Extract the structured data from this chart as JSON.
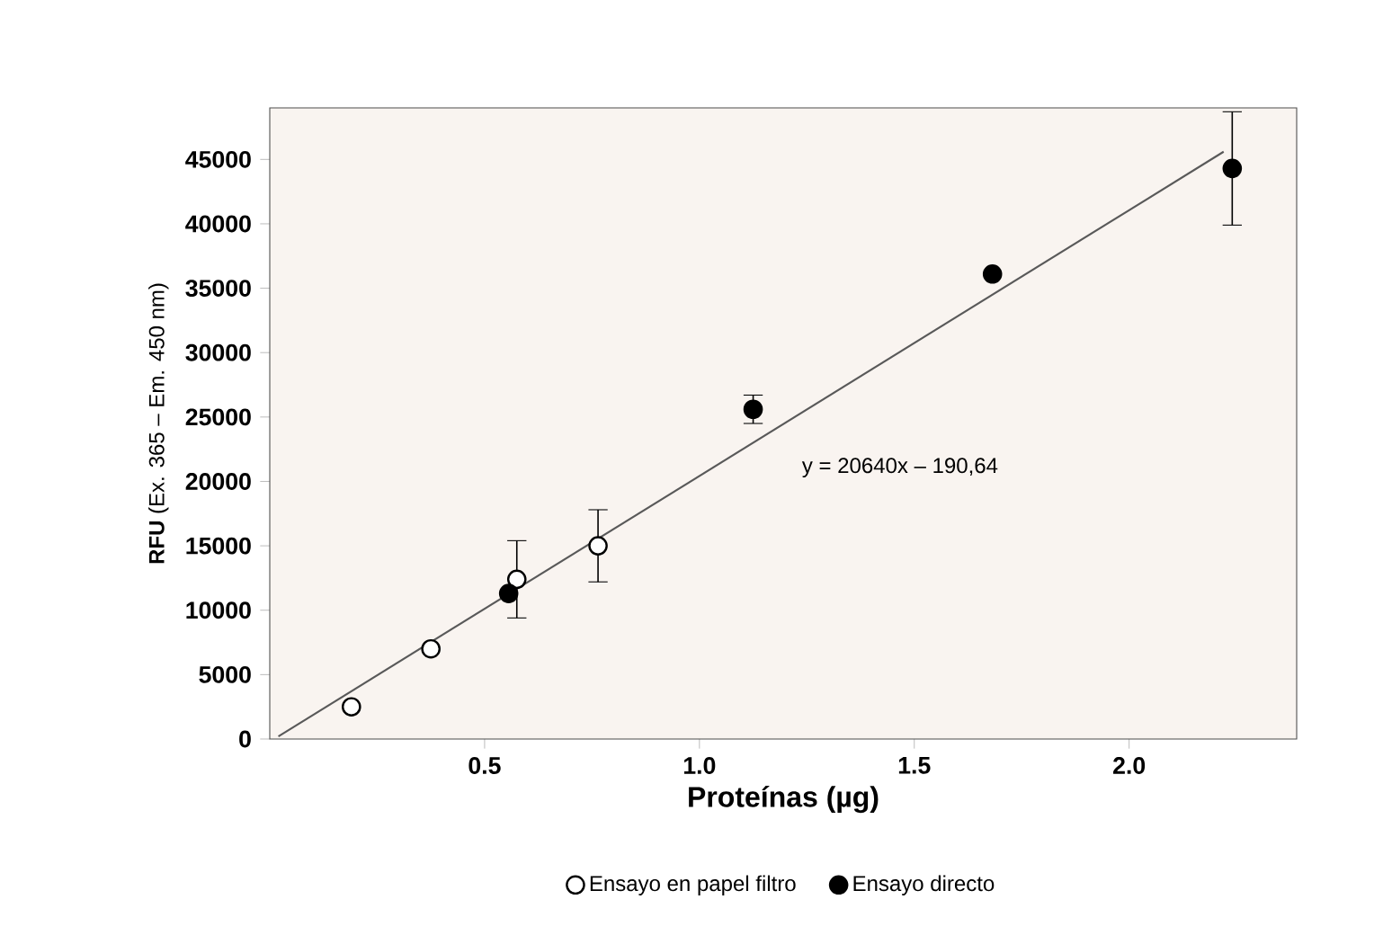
{
  "chart_data": {
    "type": "scatter",
    "xlabel": "Proteínas (µg)",
    "ylabel": "**RFU** (Ex. 365 – Em. 450 nm)",
    "xlim": [
      0,
      2.39
    ],
    "ylim": [
      0,
      49000
    ],
    "xticks": [
      {
        "value": 0.5,
        "label": "0.5"
      },
      {
        "value": 1.0,
        "label": "1.0"
      },
      {
        "value": 1.5,
        "label": "1.5"
      },
      {
        "value": 2.0,
        "label": "2.0"
      }
    ],
    "yticks": [
      0,
      5000,
      10000,
      15000,
      20000,
      25000,
      30000,
      35000,
      40000,
      45000
    ],
    "grid": false,
    "legend": "bottom",
    "marker": "circle",
    "series": [
      {
        "name": "Ensayo en papel filtro",
        "color": "#ffffff",
        "x": [
          0.19,
          0.375,
          0.575,
          0.764
        ],
        "values": [
          2500,
          7000,
          12400,
          15000
        ],
        "errors": [
          null,
          null,
          3000,
          2800
        ]
      },
      {
        "name": "Ensayo directo",
        "color": "#000000",
        "x": [
          0.556,
          1.125,
          1.682,
          2.24
        ],
        "values": [
          11300,
          25600,
          36100,
          44300
        ],
        "errors": [
          null,
          1100,
          null,
          4400
        ]
      },
      {
        "type": "line",
        "color": "#595959",
        "marker": "none",
        "x": [
          0.02,
          2.22
        ],
        "values": [
          200,
          45600
        ]
      }
    ],
    "annotations": [
      "y = 20640x – 190,64"
    ]
  }
}
